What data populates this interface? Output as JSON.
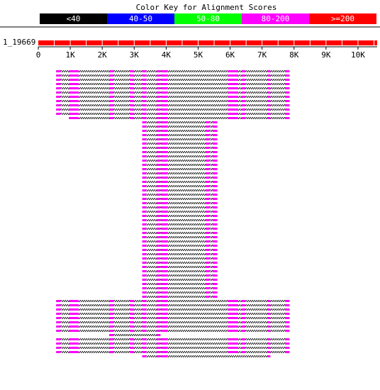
{
  "title": "Color Key for Alignment Scores",
  "legend": [
    {
      "label": "<40",
      "color": "#000000",
      "text_color": "#ffffff"
    },
    {
      "label": "40-50",
      "color": "#0000ff",
      "text_color": "#ffffff"
    },
    {
      "label": "50-80",
      "color": "#00ff00",
      "text_color": "#ffffff"
    },
    {
      "label": "80-200",
      "color": "#ff00ff",
      "text_color": "#ffffff"
    },
    {
      "label": ">=200",
      "color": "#ff0000",
      "text_color": "#ffffff"
    }
  ],
  "query": {
    "name": "1_19669",
    "length": 10600,
    "color": "#ff0000"
  },
  "axis": {
    "ticks": [
      0,
      1000,
      2000,
      3000,
      4000,
      5000,
      6000,
      7000,
      8000,
      9000,
      10000
    ],
    "tick_labels": [
      "0",
      "1K",
      "2K",
      "3K",
      "4K",
      "5K",
      "6K",
      "7K",
      "8K",
      "9K",
      "10K"
    ]
  },
  "hatch_color": "#000000",
  "hit_color": "#ff00ff",
  "hit_groups": [
    {
      "start": 560,
      "end": 7860,
      "count": 11,
      "segments": [
        [
          560,
          700
        ],
        [
          960,
          1260
        ],
        [
          2220,
          2360
        ],
        [
          2860,
          3000
        ],
        [
          3250,
          3380
        ],
        [
          3700,
          3820
        ],
        [
          3840,
          4050
        ],
        [
          5930,
          6120
        ],
        [
          6120,
          6250
        ],
        [
          6360,
          6470
        ],
        [
          7170,
          7260
        ],
        [
          7720,
          7860
        ]
      ]
    },
    {
      "start": 960,
      "end": 7860,
      "count": 1,
      "segments": [
        [
          960,
          1260
        ],
        [
          2220,
          2360
        ],
        [
          2860,
          3000
        ],
        [
          3250,
          3380
        ],
        [
          3700,
          3820
        ],
        [
          3840,
          4050
        ],
        [
          5930,
          6120
        ],
        [
          6120,
          6250
        ],
        [
          6360,
          6470
        ],
        [
          7170,
          7260
        ],
        [
          7720,
          7860
        ]
      ]
    },
    {
      "start": 3250,
      "end": 5600,
      "count": 42,
      "segments": [
        [
          3250,
          3380
        ],
        [
          3700,
          3820
        ],
        [
          3840,
          4050
        ],
        [
          5240,
          5360
        ],
        [
          5450,
          5600
        ]
      ]
    },
    {
      "start": 560,
      "end": 7860,
      "count": 8,
      "segments": [
        [
          560,
          700
        ],
        [
          960,
          1260
        ],
        [
          2220,
          2360
        ],
        [
          2860,
          3000
        ],
        [
          3250,
          3380
        ],
        [
          3700,
          3820
        ],
        [
          3840,
          4050
        ],
        [
          5930,
          6120
        ],
        [
          6120,
          6250
        ],
        [
          6360,
          6470
        ],
        [
          7170,
          7260
        ],
        [
          7720,
          7860
        ]
      ]
    },
    {
      "start": 2220,
      "end": 3820,
      "count": 1,
      "segments": [
        [
          2220,
          2360
        ],
        [
          3700,
          3820
        ]
      ]
    },
    {
      "start": 560,
      "end": 7860,
      "count": 4,
      "segments": [
        [
          560,
          700
        ],
        [
          960,
          1260
        ],
        [
          2220,
          2360
        ],
        [
          2860,
          3000
        ],
        [
          3250,
          3380
        ],
        [
          3700,
          3820
        ],
        [
          3840,
          4050
        ],
        [
          5930,
          6120
        ],
        [
          6120,
          6250
        ],
        [
          6360,
          6470
        ],
        [
          7170,
          7260
        ],
        [
          7720,
          7860
        ]
      ]
    },
    {
      "start": 3250,
      "end": 7260,
      "count": 1,
      "segments": [
        [
          3250,
          3380
        ],
        [
          3700,
          3820
        ],
        [
          3840,
          4050
        ],
        [
          7170,
          7260
        ]
      ]
    }
  ]
}
